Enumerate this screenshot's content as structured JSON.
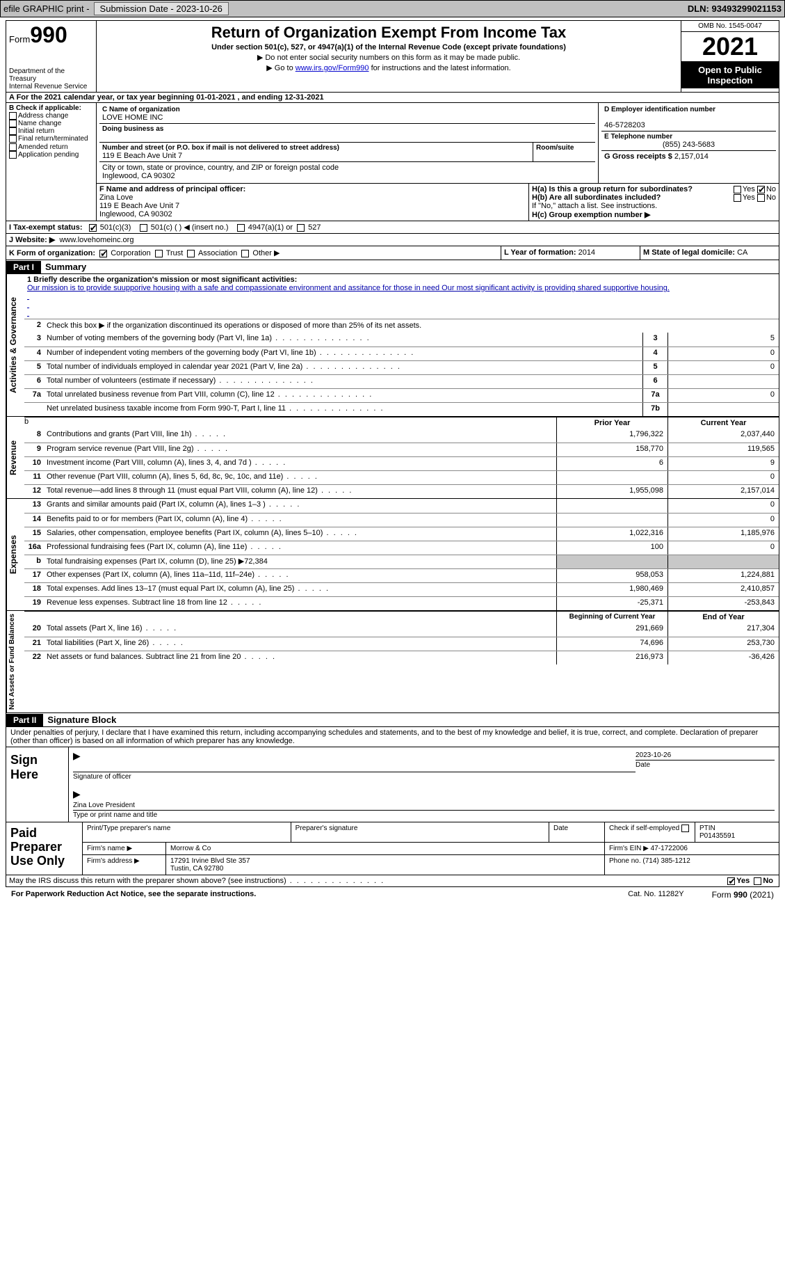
{
  "topbar": {
    "efile": "efile GRAPHIC print -",
    "submission": "Submission Date - 2023-10-26",
    "dln": "DLN: 93493299021153"
  },
  "header": {
    "form_label": "Form",
    "form_no": "990",
    "dept": "Department of the Treasury",
    "irs": "Internal Revenue Service",
    "title": "Return of Organization Exempt From Income Tax",
    "sub": "Under section 501(c), 527, or 4947(a)(1) of the Internal Revenue Code (except private foundations)",
    "l1": "▶ Do not enter social security numbers on this form as it may be made public.",
    "l2_pre": "▶ Go to ",
    "l2_link": "www.irs.gov/Form990",
    "l2_post": " for instructions and the latest information.",
    "omb": "OMB No. 1545-0047",
    "year": "2021",
    "otp": "Open to Public Inspection"
  },
  "row_a": "A For the 2021 calendar year, or tax year beginning 01-01-2021   , and ending 12-31-2021",
  "col_b": {
    "hdr": "B Check if applicable:",
    "opts": [
      "Address change",
      "Name change",
      "Initial return",
      "Final return/terminated",
      "Amended return",
      "Application pending"
    ]
  },
  "col_c": {
    "c_lbl": "C Name of organization",
    "c_val": "LOVE HOME INC",
    "dba_lbl": "Doing business as",
    "addr_lbl": "Number and street (or P.O. box if mail is not delivered to street address)",
    "room_lbl": "Room/suite",
    "addr_val": "119 E Beach Ave Unit 7",
    "city_lbl": "City or town, state or province, country, and ZIP or foreign postal code",
    "city_val": "Inglewood, CA  90302",
    "f_lbl": "F Name and address of principal officer:",
    "f_name": "Zina Love",
    "f_addr1": "119 E Beach Ave Unit 7",
    "f_addr2": "Inglewood, CA  90302"
  },
  "col_d": {
    "d_lbl": "D Employer identification number",
    "d_val": "46-5728203",
    "e_lbl": "E Telephone number",
    "e_val": "(855) 243-5683",
    "g_lbl": "G Gross receipts $",
    "g_val": "2,157,014",
    "ha_lbl": "H(a)  Is this a group return for subordinates?",
    "hb_lbl": "H(b)  Are all subordinates included?",
    "hb_note": "If \"No,\" attach a list. See instructions.",
    "hc_lbl": "H(c)  Group exemption number ▶",
    "yes": "Yes",
    "no": "No"
  },
  "row_i": {
    "lbl": "I   Tax-exempt status:",
    "o1": "501(c)(3)",
    "o2": "501(c) (  ) ◀ (insert no.)",
    "o3": "4947(a)(1) or",
    "o4": "527"
  },
  "row_j": {
    "lbl": "J   Website: ▶",
    "val": "www.lovehomeinc.org"
  },
  "row_k": {
    "lbl": "K Form of organization:",
    "o1": "Corporation",
    "o2": "Trust",
    "o3": "Association",
    "o4": "Other ▶",
    "l_lbl": "L Year of formation:",
    "l_val": "2014",
    "m_lbl": "M State of legal domicile:",
    "m_val": "CA"
  },
  "parts": {
    "p1": "Part I",
    "p1t": "Summary",
    "p2": "Part II",
    "p2t": "Signature Block"
  },
  "vtabs": {
    "ag": "Activities & Governance",
    "rev": "Revenue",
    "exp": "Expenses",
    "na": "Net Assets or Fund Balances"
  },
  "s1": {
    "l1_lbl": "1  Briefly describe the organization's mission or most significant activities:",
    "l1_txt": "Our mission is to provide suupporive housing with a safe and compassionate environment and assitance for those in need Our most significant activity is providing shared supportive housing.",
    "l2": "Check this box ▶      if the organization discontinued its operations or disposed of more than 25% of its net assets.",
    "rows_ag": [
      {
        "n": "3",
        "d": "Number of voting members of the governing body (Part VI, line 1a)",
        "box": "3",
        "v": "5"
      },
      {
        "n": "4",
        "d": "Number of independent voting members of the governing body (Part VI, line 1b)",
        "box": "4",
        "v": "0"
      },
      {
        "n": "5",
        "d": "Total number of individuals employed in calendar year 2021 (Part V, line 2a)",
        "box": "5",
        "v": "0"
      },
      {
        "n": "6",
        "d": "Total number of volunteers (estimate if necessary)",
        "box": "6",
        "v": ""
      },
      {
        "n": "7a",
        "d": "Total unrelated business revenue from Part VIII, column (C), line 12",
        "box": "7a",
        "v": "0"
      },
      {
        "n": "",
        "d": "Net unrelated business taxable income from Form 990-T, Part I, line 11",
        "box": "7b",
        "v": ""
      }
    ],
    "hdr_prior": "Prior Year",
    "hdr_curr": "Current Year",
    "rows_rev": [
      {
        "n": "8",
        "d": "Contributions and grants (Part VIII, line 1h)",
        "p": "1,796,322",
        "c": "2,037,440"
      },
      {
        "n": "9",
        "d": "Program service revenue (Part VIII, line 2g)",
        "p": "158,770",
        "c": "119,565"
      },
      {
        "n": "10",
        "d": "Investment income (Part VIII, column (A), lines 3, 4, and 7d )",
        "p": "6",
        "c": "9"
      },
      {
        "n": "11",
        "d": "Other revenue (Part VIII, column (A), lines 5, 6d, 8c, 9c, 10c, and 11e)",
        "p": "",
        "c": "0"
      },
      {
        "n": "12",
        "d": "Total revenue—add lines 8 through 11 (must equal Part VIII, column (A), line 12)",
        "p": "1,955,098",
        "c": "2,157,014"
      }
    ],
    "rows_exp": [
      {
        "n": "13",
        "d": "Grants and similar amounts paid (Part IX, column (A), lines 1–3 )",
        "p": "",
        "c": "0"
      },
      {
        "n": "14",
        "d": "Benefits paid to or for members (Part IX, column (A), line 4)",
        "p": "",
        "c": "0"
      },
      {
        "n": "15",
        "d": "Salaries, other compensation, employee benefits (Part IX, column (A), lines 5–10)",
        "p": "1,022,316",
        "c": "1,185,976"
      },
      {
        "n": "16a",
        "d": "Professional fundraising fees (Part IX, column (A), line 11e)",
        "p": "100",
        "c": "0"
      },
      {
        "n": "b",
        "d": "Total fundraising expenses (Part IX, column (D), line 25) ▶72,384",
        "grey": true
      },
      {
        "n": "17",
        "d": "Other expenses (Part IX, column (A), lines 11a–11d, 11f–24e)",
        "p": "958,053",
        "c": "1,224,881"
      },
      {
        "n": "18",
        "d": "Total expenses. Add lines 13–17 (must equal Part IX, column (A), line 25)",
        "p": "1,980,469",
        "c": "2,410,857"
      },
      {
        "n": "19",
        "d": "Revenue less expenses. Subtract line 18 from line 12",
        "p": "-25,371",
        "c": "-253,843"
      }
    ],
    "hdr_beg": "Beginning of Current Year",
    "hdr_end": "End of Year",
    "rows_na": [
      {
        "n": "20",
        "d": "Total assets (Part X, line 16)",
        "p": "291,669",
        "c": "217,304"
      },
      {
        "n": "21",
        "d": "Total liabilities (Part X, line 26)",
        "p": "74,696",
        "c": "253,730"
      },
      {
        "n": "22",
        "d": "Net assets or fund balances. Subtract line 21 from line 20",
        "p": "216,973",
        "c": "-36,426"
      }
    ]
  },
  "sig": {
    "intro": "Under penalties of perjury, I declare that I have examined this return, including accompanying schedules and statements, and to the best of my knowledge and belief, it is true, correct, and complete. Declaration of preparer (other than officer) is based on all information of which preparer has any knowledge.",
    "sign_here": "Sign Here",
    "sig_of": "Signature of officer",
    "date_lbl": "Date",
    "sig_date": "2023-10-26",
    "name_line": "Zina Love  President",
    "name_lbl": "Type or print name and title"
  },
  "prep": {
    "label": "Paid Preparer Use Only",
    "r1": {
      "a": "Print/Type preparer's name",
      "b": "Preparer's signature",
      "c": "Date",
      "d": "Check        if self-employed",
      "e": "PTIN",
      "f": "P01435591"
    },
    "r2": {
      "a": "Firm's name    ▶",
      "b": "Morrow & Co",
      "c": "Firm's EIN ▶",
      "d": "47-1722006"
    },
    "r3": {
      "a": "Firm's address ▶",
      "b": "17291 Irvine Blvd Ste 357",
      "c": "Phone no.",
      "d": "(714) 385-1212"
    },
    "r3b": "Tustin, CA  92780"
  },
  "discuss": {
    "q": "May the IRS discuss this return with the preparer shown above? (see instructions)",
    "yes": "Yes",
    "no": "No"
  },
  "footer": {
    "l": "For Paperwork Reduction Act Notice, see the separate instructions.",
    "m": "Cat. No. 11282Y",
    "r": "Form 990 (2021)"
  }
}
